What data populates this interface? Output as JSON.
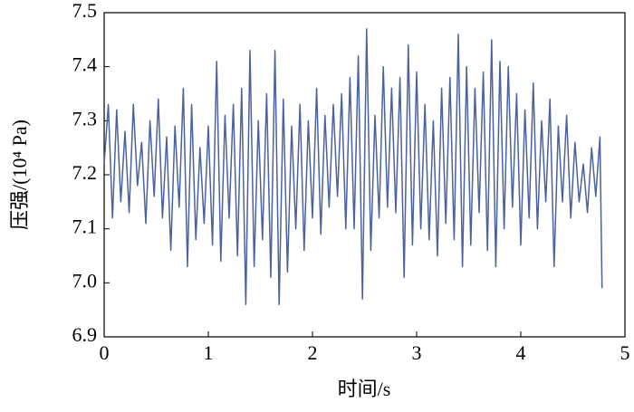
{
  "chart_data": {
    "type": "line",
    "xlabel": "时间/s",
    "ylabel": "压强/(10⁴ Pa)",
    "x": [
      0,
      0.04,
      0.08,
      0.12,
      0.16,
      0.2,
      0.24,
      0.28,
      0.32,
      0.36,
      0.4,
      0.44,
      0.48,
      0.52,
      0.56,
      0.6,
      0.64,
      0.68,
      0.72,
      0.76,
      0.8,
      0.84,
      0.88,
      0.92,
      0.96,
      1.0,
      1.04,
      1.08,
      1.12,
      1.16,
      1.2,
      1.24,
      1.28,
      1.32,
      1.36,
      1.4,
      1.44,
      1.48,
      1.52,
      1.56,
      1.6,
      1.64,
      1.68,
      1.72,
      1.76,
      1.8,
      1.84,
      1.88,
      1.92,
      1.96,
      2.0,
      2.04,
      2.08,
      2.12,
      2.16,
      2.2,
      2.24,
      2.28,
      2.32,
      2.36,
      2.4,
      2.44,
      2.48,
      2.52,
      2.56,
      2.6,
      2.64,
      2.68,
      2.72,
      2.76,
      2.8,
      2.84,
      2.88,
      2.92,
      2.96,
      3.0,
      3.04,
      3.08,
      3.12,
      3.16,
      3.2,
      3.24,
      3.28,
      3.32,
      3.36,
      3.4,
      3.44,
      3.48,
      3.52,
      3.56,
      3.6,
      3.64,
      3.68,
      3.72,
      3.76,
      3.8,
      3.84,
      3.88,
      3.92,
      3.96,
      4.0,
      4.04,
      4.08,
      4.12,
      4.16,
      4.2,
      4.24,
      4.28,
      4.32,
      4.36,
      4.4,
      4.44,
      4.48,
      4.52,
      4.56,
      4.6,
      4.64,
      4.68,
      4.72,
      4.76,
      4.78
    ],
    "series": [
      {
        "color": "#4a62a0",
        "values": [
          7.22,
          7.33,
          7.12,
          7.32,
          7.15,
          7.28,
          7.13,
          7.33,
          7.18,
          7.26,
          7.11,
          7.3,
          7.16,
          7.34,
          7.12,
          7.27,
          7.06,
          7.29,
          7.14,
          7.36,
          7.03,
          7.33,
          7.08,
          7.25,
          7.11,
          7.29,
          7.07,
          7.41,
          7.04,
          7.31,
          7.12,
          7.33,
          7.05,
          7.36,
          6.96,
          7.43,
          7.03,
          7.3,
          7.08,
          7.35,
          7.01,
          7.43,
          6.96,
          7.34,
          7.02,
          7.29,
          7.1,
          7.33,
          7.06,
          7.3,
          7.12,
          7.36,
          7.09,
          7.31,
          7.14,
          7.33,
          7.16,
          7.35,
          7.1,
          7.38,
          7.1,
          7.42,
          6.97,
          7.47,
          7.06,
          7.31,
          7.12,
          7.4,
          7.14,
          7.36,
          7.13,
          7.38,
          7.01,
          7.44,
          7.07,
          7.39,
          7.1,
          7.33,
          7.08,
          7.3,
          7.05,
          7.36,
          7.11,
          7.38,
          7.08,
          7.46,
          7.03,
          7.4,
          7.07,
          7.36,
          7.13,
          7.39,
          7.06,
          7.45,
          7.03,
          7.41,
          7.1,
          7.4,
          7.14,
          7.35,
          7.07,
          7.32,
          7.12,
          7.37,
          7.1,
          7.3,
          7.15,
          7.34,
          7.03,
          7.29,
          7.15,
          7.31,
          7.12,
          7.26,
          7.15,
          7.22,
          7.13,
          7.25,
          7.16,
          7.27,
          6.99
        ]
      }
    ],
    "xlim": [
      0,
      5
    ],
    "xticks": [
      0,
      1,
      2,
      3,
      4,
      5
    ],
    "ylim": [
      6.9,
      7.5
    ],
    "yticks": [
      6.9,
      {
        "value": 7,
        "label": "7.0"
      },
      7.1,
      7.2,
      7.3,
      7.4,
      7.5
    ]
  }
}
